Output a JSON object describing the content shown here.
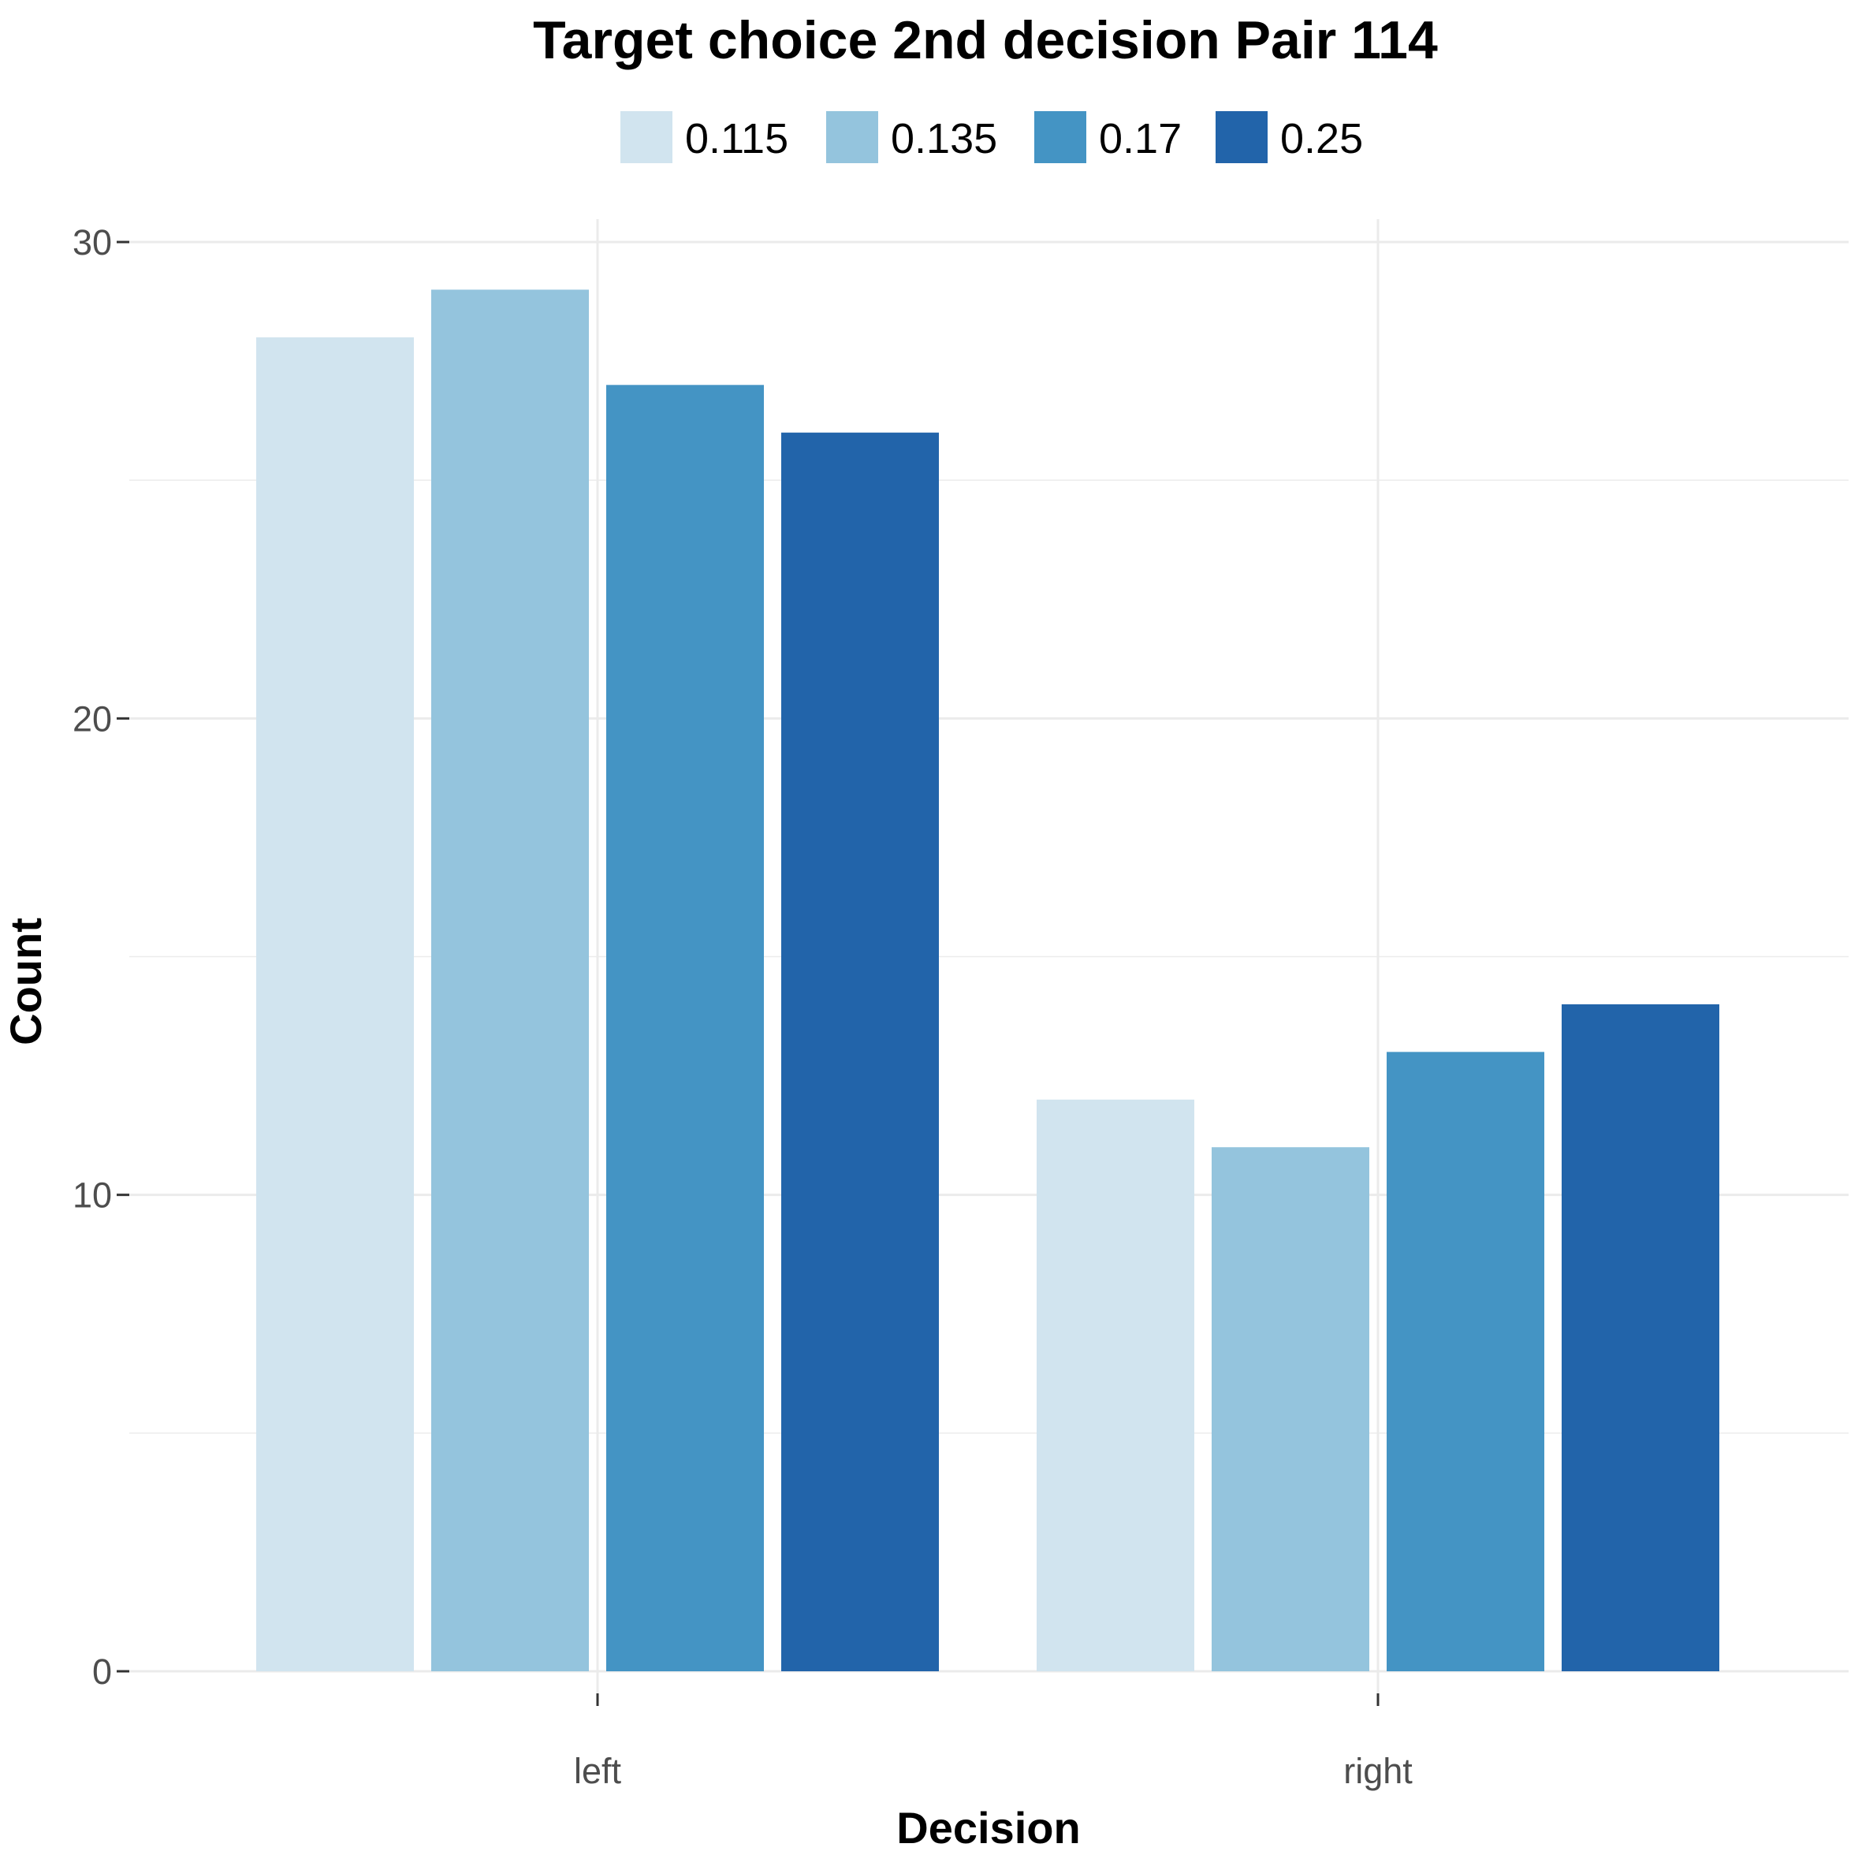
{
  "chart_data": {
    "type": "bar",
    "title": "Target choice 2nd decision Pair 114",
    "xlabel": "Decision",
    "ylabel": "Count",
    "categories": [
      "left",
      "right"
    ],
    "series": [
      {
        "name": "0.115",
        "color": "#d1e4ef",
        "values": [
          28,
          12
        ]
      },
      {
        "name": "0.135",
        "color": "#94c4dd",
        "values": [
          29,
          11
        ]
      },
      {
        "name": "0.17",
        "color": "#4494c4",
        "values": [
          27,
          13
        ]
      },
      {
        "name": "0.25",
        "color": "#2264aa",
        "values": [
          26,
          14
        ]
      }
    ],
    "ylim": [
      0,
      30
    ],
    "yticks": [
      0,
      10,
      20,
      30
    ],
    "grid": true,
    "legend_position": "top"
  }
}
